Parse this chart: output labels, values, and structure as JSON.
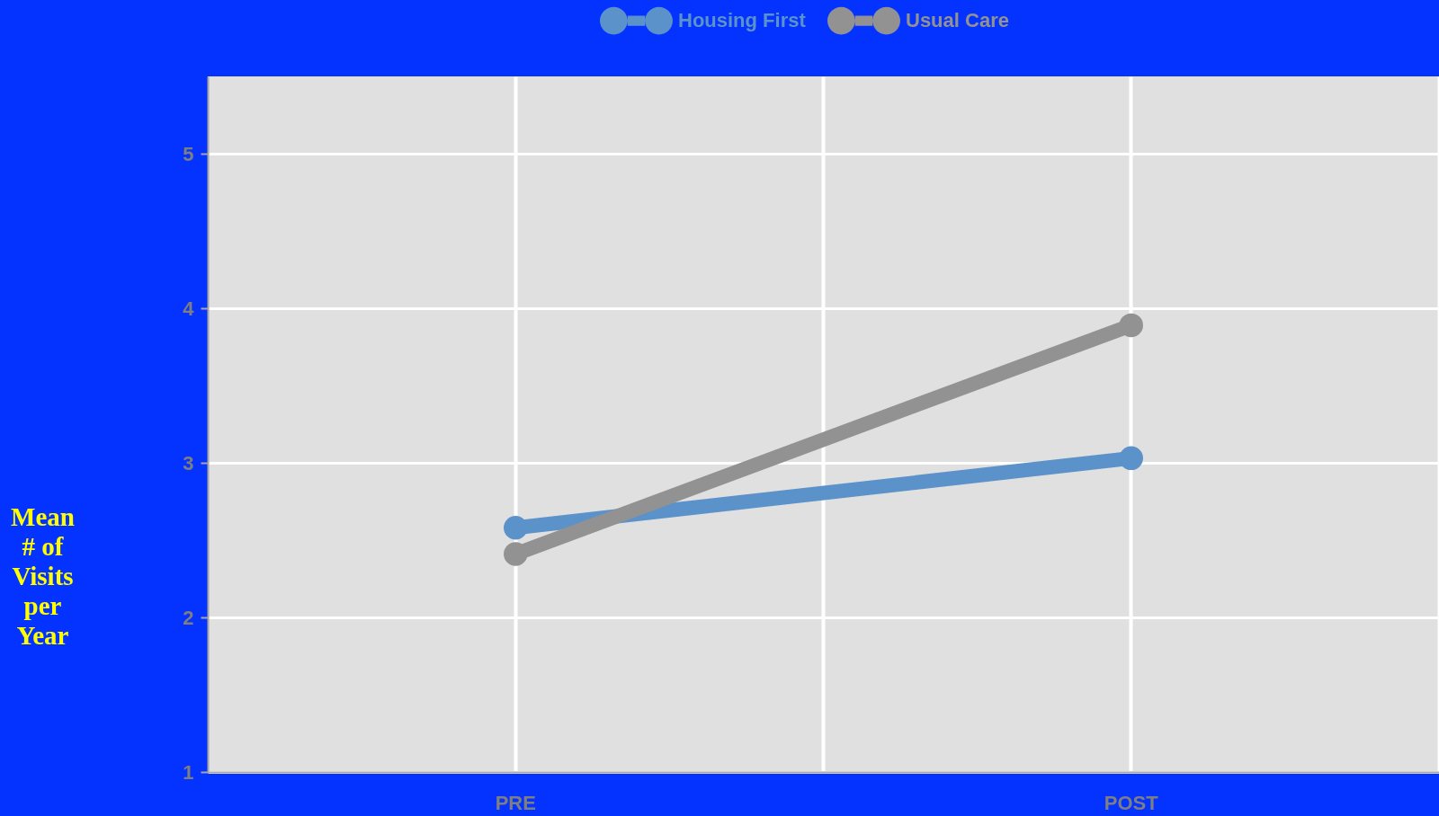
{
  "chart_data": {
    "type": "line",
    "ylabel": "Mean # of Visits per Year",
    "categories": [
      "PRE",
      "POST"
    ],
    "series": [
      {
        "name": "Housing First",
        "color": "#5b92c9",
        "values": [
          2.58,
          3.03
        ]
      },
      {
        "name": "Usual Care",
        "color": "#929292",
        "values": [
          2.41,
          3.89
        ]
      }
    ],
    "ylim": [
      1,
      5.5
    ],
    "yticks": [
      1,
      2,
      3,
      4,
      5
    ],
    "grid": true,
    "legend": "top",
    "marker": "circle",
    "line_style": "solid"
  }
}
